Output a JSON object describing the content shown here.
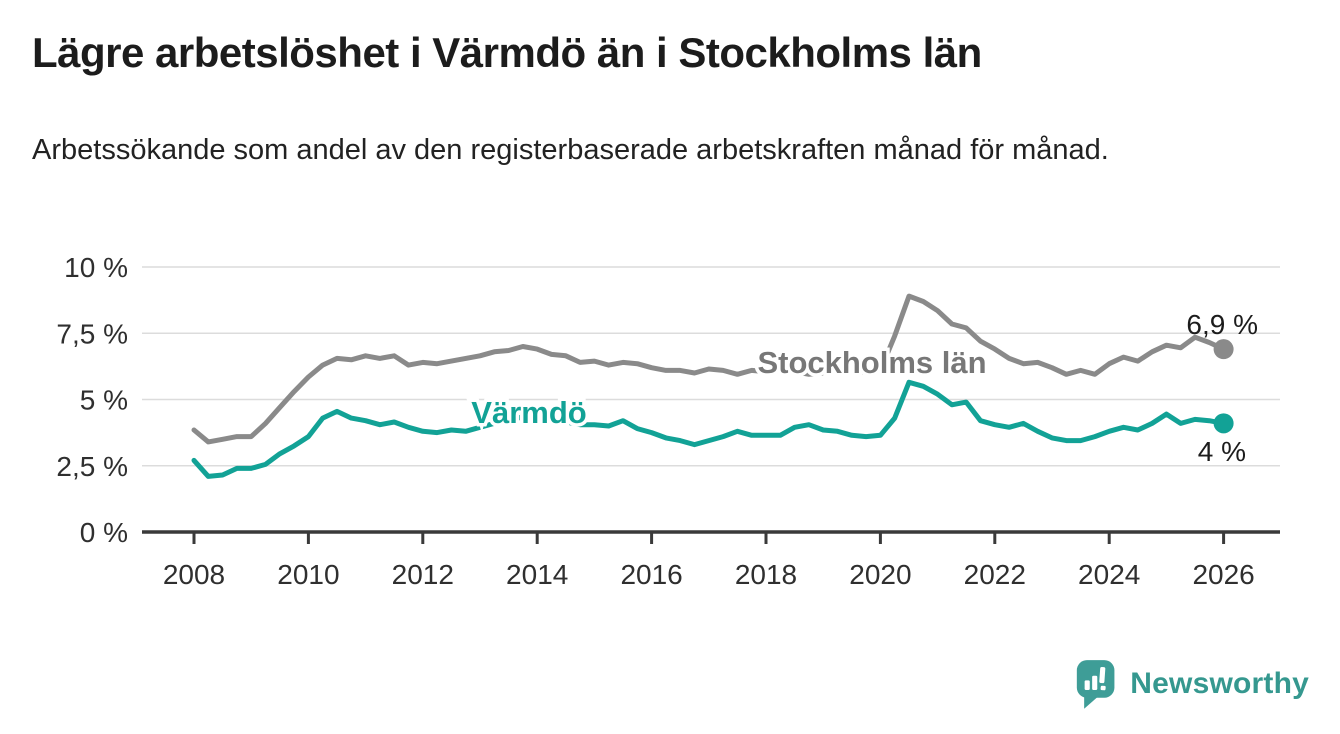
{
  "header": {
    "title": "Lägre arbetslöshet i Värmdö än i Stockholms län",
    "subtitle": "Arbetssökande som andel av den registerbaserade arbetskraften månad för månad."
  },
  "footer": {
    "brand": "Newsworthy",
    "brand_color": "#35988f",
    "logo_icon": "speech-bubble-bar-chart-exclamation-icon"
  },
  "colors": {
    "stockholm_line": "#8a8a8a",
    "stockholm_label": "#777777",
    "varmdo_line": "#12a296",
    "grid": "#dcdcdc",
    "axis": "#3a3a3a",
    "tick_text": "#2f2f2f",
    "end_label_text": "#1c1c1c"
  },
  "chart_data": {
    "type": "line",
    "title": "Lägre arbetslöshet i Värmdö än i Stockholms län",
    "xlabel": "",
    "ylabel": "",
    "grid": true,
    "legend_position": "inline-on-lines",
    "ylim": [
      0,
      10
    ],
    "xlim": [
      2007.1,
      2027
    ],
    "y_ticks": [
      {
        "v": 0,
        "label": "0 %"
      },
      {
        "v": 2.5,
        "label": "2,5 %"
      },
      {
        "v": 5,
        "label": "5 %"
      },
      {
        "v": 7.5,
        "label": "7,5 %"
      },
      {
        "v": 10,
        "label": "10 %"
      }
    ],
    "x_ticks": [
      {
        "v": 2008,
        "label": "2008"
      },
      {
        "v": 2010,
        "label": "2010"
      },
      {
        "v": 2012,
        "label": "2012"
      },
      {
        "v": 2014,
        "label": "2014"
      },
      {
        "v": 2016,
        "label": "2016"
      },
      {
        "v": 2018,
        "label": "2018"
      },
      {
        "v": 2020,
        "label": "2020"
      },
      {
        "v": 2022,
        "label": "2022"
      },
      {
        "v": 2024,
        "label": "2024"
      },
      {
        "v": 2026,
        "label": "2026"
      }
    ],
    "x": [
      2008,
      2008.25,
      2008.5,
      2008.75,
      2009,
      2009.25,
      2009.5,
      2009.75,
      2010,
      2010.25,
      2010.5,
      2010.75,
      2011,
      2011.25,
      2011.5,
      2011.75,
      2012,
      2012.25,
      2012.5,
      2012.75,
      2013,
      2013.25,
      2013.5,
      2013.75,
      2014,
      2014.25,
      2014.5,
      2014.75,
      2015,
      2015.25,
      2015.5,
      2015.75,
      2016,
      2016.25,
      2016.5,
      2016.75,
      2017,
      2017.25,
      2017.5,
      2017.75,
      2018,
      2018.25,
      2018.5,
      2018.75,
      2019,
      2019.25,
      2019.5,
      2019.75,
      2020,
      2020.25,
      2020.5,
      2020.75,
      2021,
      2021.25,
      2021.5,
      2021.75,
      2022,
      2022.25,
      2022.5,
      2022.75,
      2023,
      2023.25,
      2023.5,
      2023.75,
      2024,
      2024.25,
      2024.5,
      2024.75,
      2025,
      2025.25,
      2025.5,
      2025.75,
      2026
    ],
    "series": [
      {
        "name": "Stockholms län",
        "color": "#8a8a8a",
        "label_color": "#777777",
        "end_label": "6,9 %",
        "end_value": 6.9,
        "values": [
          3.85,
          3.4,
          3.5,
          3.6,
          3.6,
          4.1,
          4.7,
          5.3,
          5.85,
          6.3,
          6.55,
          6.5,
          6.65,
          6.55,
          6.65,
          6.3,
          6.4,
          6.35,
          6.45,
          6.55,
          6.65,
          6.8,
          6.85,
          7.0,
          6.9,
          6.7,
          6.65,
          6.4,
          6.45,
          6.3,
          6.4,
          6.35,
          6.2,
          6.1,
          6.1,
          6.0,
          6.15,
          6.1,
          5.95,
          6.1,
          6.05,
          6.1,
          6.05,
          5.95,
          6.0,
          6.05,
          6.0,
          6.05,
          6.1,
          7.4,
          8.9,
          8.7,
          8.35,
          7.85,
          7.7,
          7.2,
          6.9,
          6.55,
          6.35,
          6.4,
          6.2,
          5.95,
          6.1,
          5.95,
          6.35,
          6.6,
          6.45,
          6.8,
          7.05,
          6.95,
          7.35,
          7.15,
          6.9
        ]
      },
      {
        "name": "Värmdö",
        "color": "#12a296",
        "label_color": "#12a296",
        "end_label": "4 %",
        "end_value": 4.0,
        "values": [
          2.7,
          2.1,
          2.15,
          2.4,
          2.4,
          2.55,
          2.95,
          3.25,
          3.6,
          4.3,
          4.55,
          4.3,
          4.2,
          4.05,
          4.15,
          3.95,
          3.8,
          3.75,
          3.85,
          3.8,
          3.95,
          4.1,
          4.2,
          4.35,
          4.3,
          4.2,
          4.15,
          4.05,
          4.05,
          4.0,
          4.2,
          3.9,
          3.75,
          3.55,
          3.45,
          3.3,
          3.45,
          3.6,
          3.8,
          3.65,
          3.65,
          3.65,
          3.95,
          4.05,
          3.85,
          3.8,
          3.65,
          3.6,
          3.65,
          4.3,
          5.65,
          5.5,
          5.2,
          4.8,
          4.9,
          4.2,
          4.05,
          3.95,
          4.1,
          3.8,
          3.55,
          3.45,
          3.45,
          3.6,
          3.8,
          3.95,
          3.85,
          4.1,
          4.45,
          4.1,
          4.25,
          4.2,
          4.1
        ]
      }
    ]
  }
}
